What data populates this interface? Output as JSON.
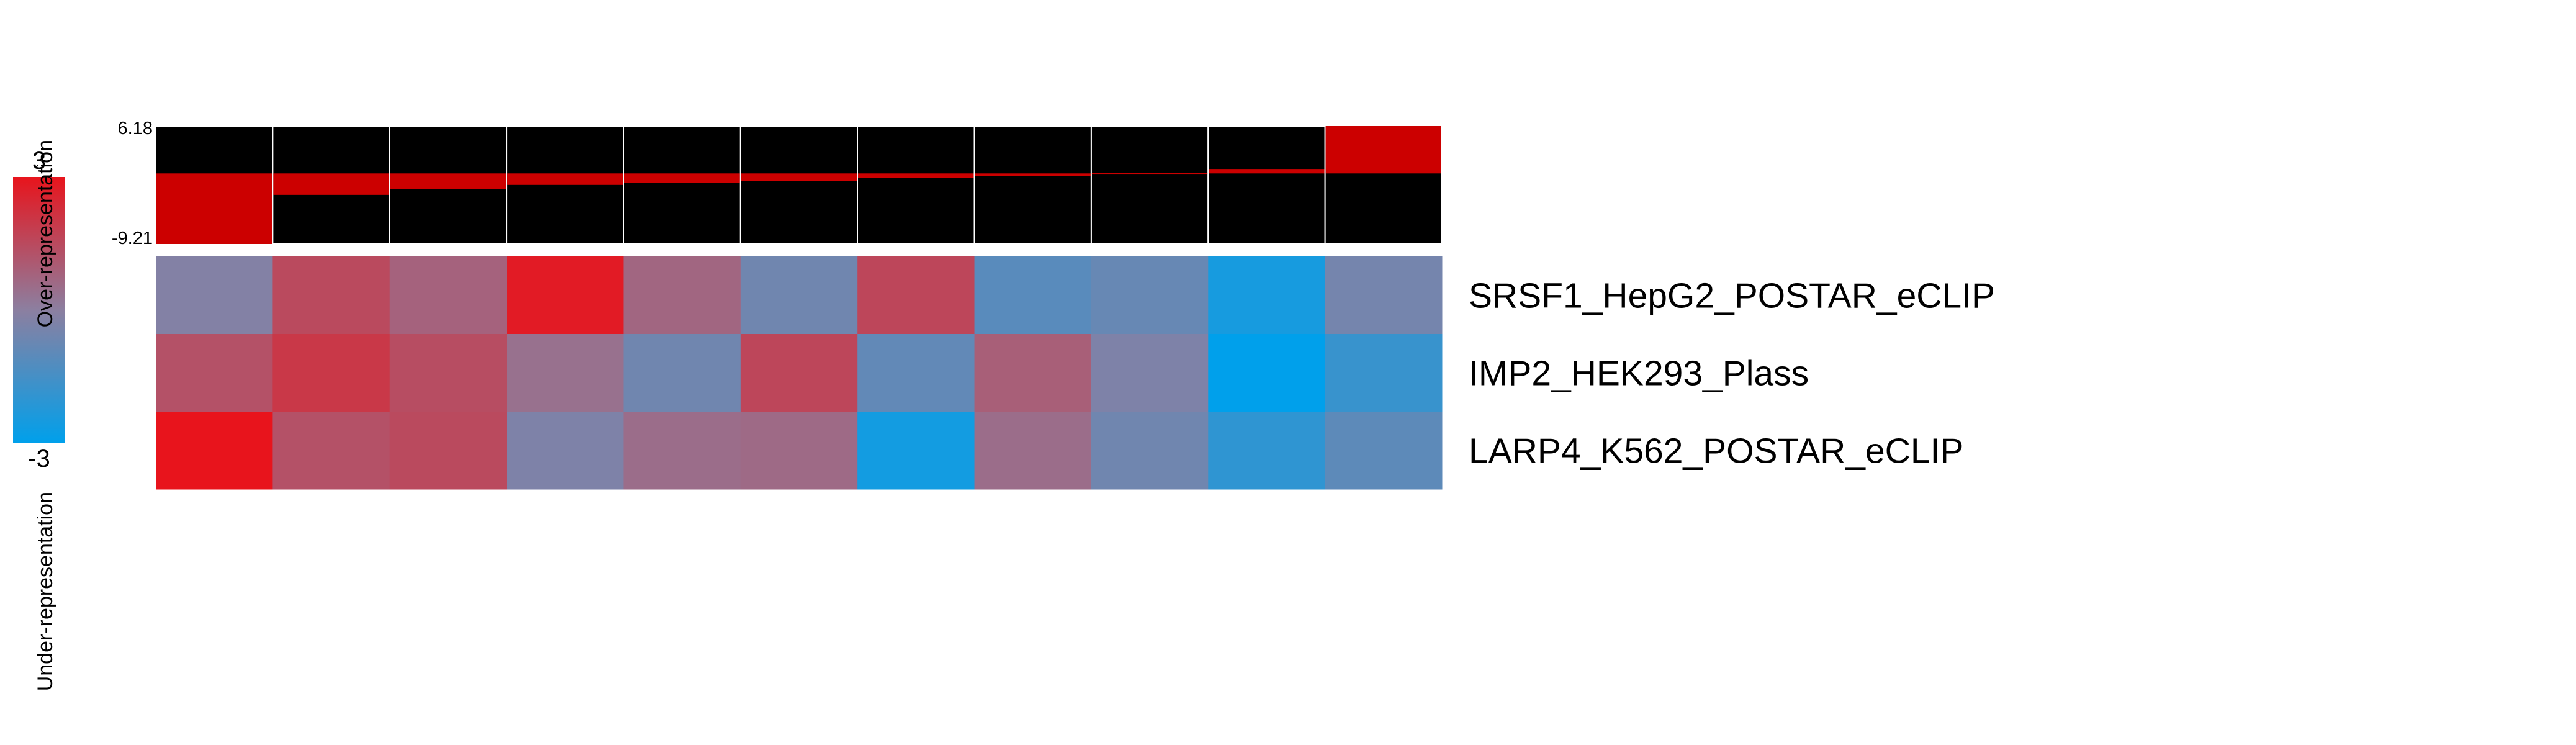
{
  "chart_data": {
    "type": "heatmap",
    "legend": {
      "max_label": "3",
      "min_label": "-3",
      "range": [
        -3,
        3
      ],
      "top_caption": "Over-representation",
      "bottom_caption": "Under-representation",
      "colors": {
        "high": "#e8141c",
        "mid": "#8c7fa0",
        "low": "#00a0eb"
      }
    },
    "bar_panel": {
      "max_label": "6.18",
      "min_label": "-9.21",
      "range": [
        -9.21,
        6.18
      ],
      "background": "#000000",
      "bar_color": "#cc0000",
      "values": [
        -9.21,
        -2.8,
        -2.0,
        -1.5,
        -1.2,
        -1.0,
        -0.6,
        -0.3,
        0.1,
        0.5,
        6.18
      ]
    },
    "rows": [
      "SRSF1_HepG2_POSTAR_eCLIP",
      "IMP2_HEK293_Plass",
      "LARP4_K562_POSTAR_eCLIP"
    ],
    "values": [
      [
        -0.2,
        1.5,
        0.8,
        2.8,
        0.7,
        -0.6,
        1.6,
        -1.1,
        -0.8,
        -2.5,
        -0.5
      ],
      [
        1.3,
        2.0,
        1.4,
        0.4,
        -0.6,
        1.6,
        -0.9,
        0.9,
        -0.3,
        -3.0,
        -1.8
      ],
      [
        3.0,
        1.3,
        1.5,
        -0.3,
        0.5,
        0.6,
        -2.6,
        0.5,
        -0.6,
        -2.0,
        -1.0
      ]
    ]
  }
}
